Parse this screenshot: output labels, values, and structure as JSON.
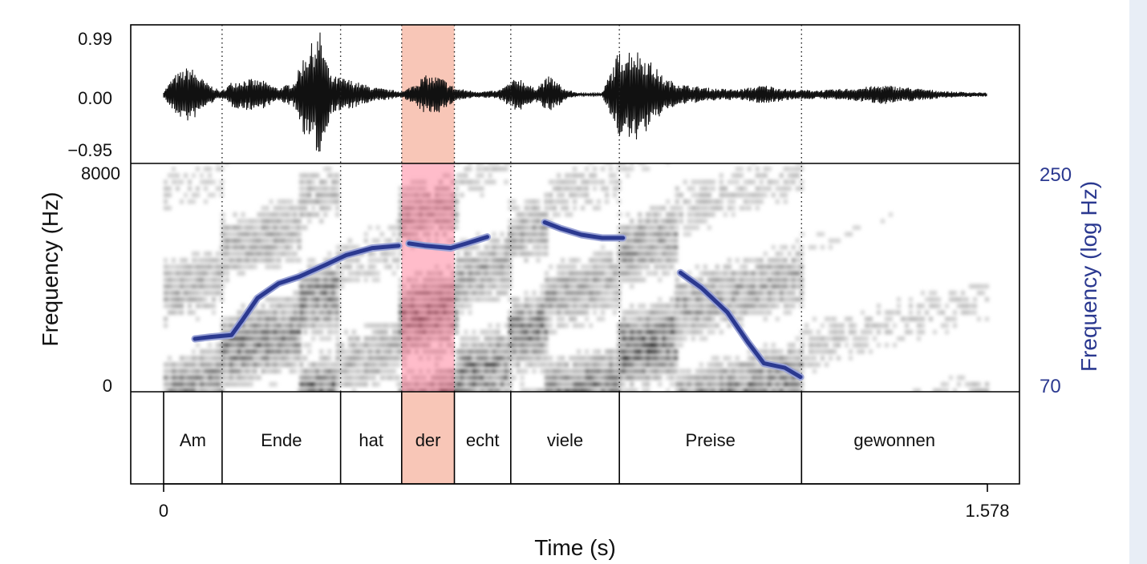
{
  "chart_data": [
    {
      "type": "line",
      "panel": "waveform",
      "ylabel": "",
      "y_ticks": [
        "0.99",
        "0.00",
        "−0.95"
      ],
      "ylim": [
        -0.95,
        0.99
      ],
      "xlim": [
        0,
        1.578
      ],
      "envelope": [
        {
          "t": 0.0,
          "a": 0.05
        },
        {
          "t": 0.02,
          "a": 0.3
        },
        {
          "t": 0.05,
          "a": 0.45
        },
        {
          "t": 0.08,
          "a": 0.2
        },
        {
          "t": 0.11,
          "a": 0.05
        },
        {
          "t": 0.13,
          "a": 0.2
        },
        {
          "t": 0.16,
          "a": 0.25
        },
        {
          "t": 0.19,
          "a": 0.22
        },
        {
          "t": 0.22,
          "a": 0.1
        },
        {
          "t": 0.25,
          "a": 0.2
        },
        {
          "t": 0.27,
          "a": 0.65
        },
        {
          "t": 0.3,
          "a": 0.99
        },
        {
          "t": 0.32,
          "a": 0.3
        },
        {
          "t": 0.35,
          "a": 0.25
        },
        {
          "t": 0.37,
          "a": 0.2
        },
        {
          "t": 0.4,
          "a": 0.12
        },
        {
          "t": 0.43,
          "a": 0.08
        },
        {
          "t": 0.46,
          "a": 0.05
        },
        {
          "t": 0.5,
          "a": 0.3
        },
        {
          "t": 0.53,
          "a": 0.28
        },
        {
          "t": 0.56,
          "a": 0.1
        },
        {
          "t": 0.6,
          "a": 0.05
        },
        {
          "t": 0.64,
          "a": 0.06
        },
        {
          "t": 0.68,
          "a": 0.28
        },
        {
          "t": 0.71,
          "a": 0.1
        },
        {
          "t": 0.74,
          "a": 0.3
        },
        {
          "t": 0.77,
          "a": 0.08
        },
        {
          "t": 0.8,
          "a": 0.02
        },
        {
          "t": 0.84,
          "a": 0.02
        },
        {
          "t": 0.87,
          "a": 0.65
        },
        {
          "t": 0.9,
          "a": 0.75
        },
        {
          "t": 0.93,
          "a": 0.55
        },
        {
          "t": 0.96,
          "a": 0.25
        },
        {
          "t": 1.0,
          "a": 0.15
        },
        {
          "t": 1.05,
          "a": 0.1
        },
        {
          "t": 1.1,
          "a": 0.08
        },
        {
          "t": 1.15,
          "a": 0.15
        },
        {
          "t": 1.2,
          "a": 0.08
        },
        {
          "t": 1.26,
          "a": 0.07
        },
        {
          "t": 1.32,
          "a": 0.1
        },
        {
          "t": 1.38,
          "a": 0.15
        },
        {
          "t": 1.44,
          "a": 0.1
        },
        {
          "t": 1.5,
          "a": 0.05
        },
        {
          "t": 1.578,
          "a": 0.03
        }
      ]
    },
    {
      "type": "heatmap",
      "panel": "spectrogram",
      "ylabel": "Frequency (Hz)",
      "y_ticks": [
        "8000",
        "0"
      ],
      "ylim": [
        0,
        8000
      ],
      "xlim": [
        0,
        1.578
      ],
      "bands": [
        {
          "t0": 0.0,
          "t1": 0.11,
          "energy": 0.55
        },
        {
          "t0": 0.11,
          "t1": 0.26,
          "energy": 0.75
        },
        {
          "t0": 0.26,
          "t1": 0.33,
          "energy": 0.85
        },
        {
          "t0": 0.33,
          "t1": 0.45,
          "energy": 0.45
        },
        {
          "t0": 0.45,
          "t1": 0.56,
          "energy": 0.9
        },
        {
          "t0": 0.56,
          "t1": 0.66,
          "energy": 0.7
        },
        {
          "t0": 0.66,
          "t1": 0.73,
          "energy": 0.8
        },
        {
          "t0": 0.73,
          "t1": 0.87,
          "energy": 0.65
        },
        {
          "t0": 0.87,
          "t1": 0.98,
          "energy": 0.9
        },
        {
          "t0": 0.98,
          "t1": 1.22,
          "energy": 0.65
        },
        {
          "t0": 1.22,
          "t1": 1.578,
          "energy": 0.3
        }
      ]
    },
    {
      "type": "line",
      "panel": "pitch",
      "ylabel": "Frequency (log Hz)",
      "y_ticks": [
        "250",
        "70"
      ],
      "ylim": [
        70,
        250
      ],
      "color": "#2b3990",
      "series": [
        {
          "points": [
            [
              0.06,
              94
            ],
            [
              0.09,
              95
            ],
            [
              0.13,
              96
            ],
            [
              0.15,
              104
            ],
            [
              0.18,
              118
            ],
            [
              0.22,
              128
            ],
            [
              0.26,
              133
            ],
            [
              0.31,
              142
            ],
            [
              0.35,
              150
            ],
            [
              0.4,
              156
            ],
            [
              0.45,
              158
            ]
          ]
        },
        {
          "points": [
            [
              0.47,
              160
            ],
            [
              0.5,
              158
            ],
            [
              0.55,
              156
            ],
            [
              0.58,
              160
            ],
            [
              0.62,
              166
            ]
          ]
        },
        {
          "points": [
            [
              0.73,
              180
            ],
            [
              0.76,
              174
            ],
            [
              0.8,
              168
            ],
            [
              0.84,
              165
            ],
            [
              0.88,
              165
            ]
          ]
        },
        {
          "points": [
            [
              0.99,
              136
            ],
            [
              1.03,
              125
            ],
            [
              1.08,
              109
            ],
            [
              1.12,
              92
            ],
            [
              1.15,
              82
            ],
            [
              1.19,
              80
            ],
            [
              1.22,
              76
            ]
          ]
        }
      ]
    },
    {
      "type": "table",
      "panel": "annotation",
      "xlabel": "Time (s)",
      "x_ticks": [
        "0",
        "1.578"
      ],
      "xlim": [
        0,
        1.578
      ],
      "highlight_color": "#f08060",
      "highlight_spec_color": "#ff6080",
      "words": [
        {
          "label": "Am",
          "start": 0.0,
          "end": 0.112
        },
        {
          "label": "Ende",
          "start": 0.112,
          "end": 0.339
        },
        {
          "label": "hat",
          "start": 0.339,
          "end": 0.456
        },
        {
          "label": "der",
          "start": 0.456,
          "end": 0.557,
          "highlight": true
        },
        {
          "label": "echt",
          "start": 0.557,
          "end": 0.665
        },
        {
          "label": "viele",
          "start": 0.665,
          "end": 0.873
        },
        {
          "label": "Preise",
          "start": 0.873,
          "end": 1.222
        },
        {
          "label": "gewonnen",
          "start": 1.222,
          "end": 1.578
        }
      ]
    }
  ]
}
